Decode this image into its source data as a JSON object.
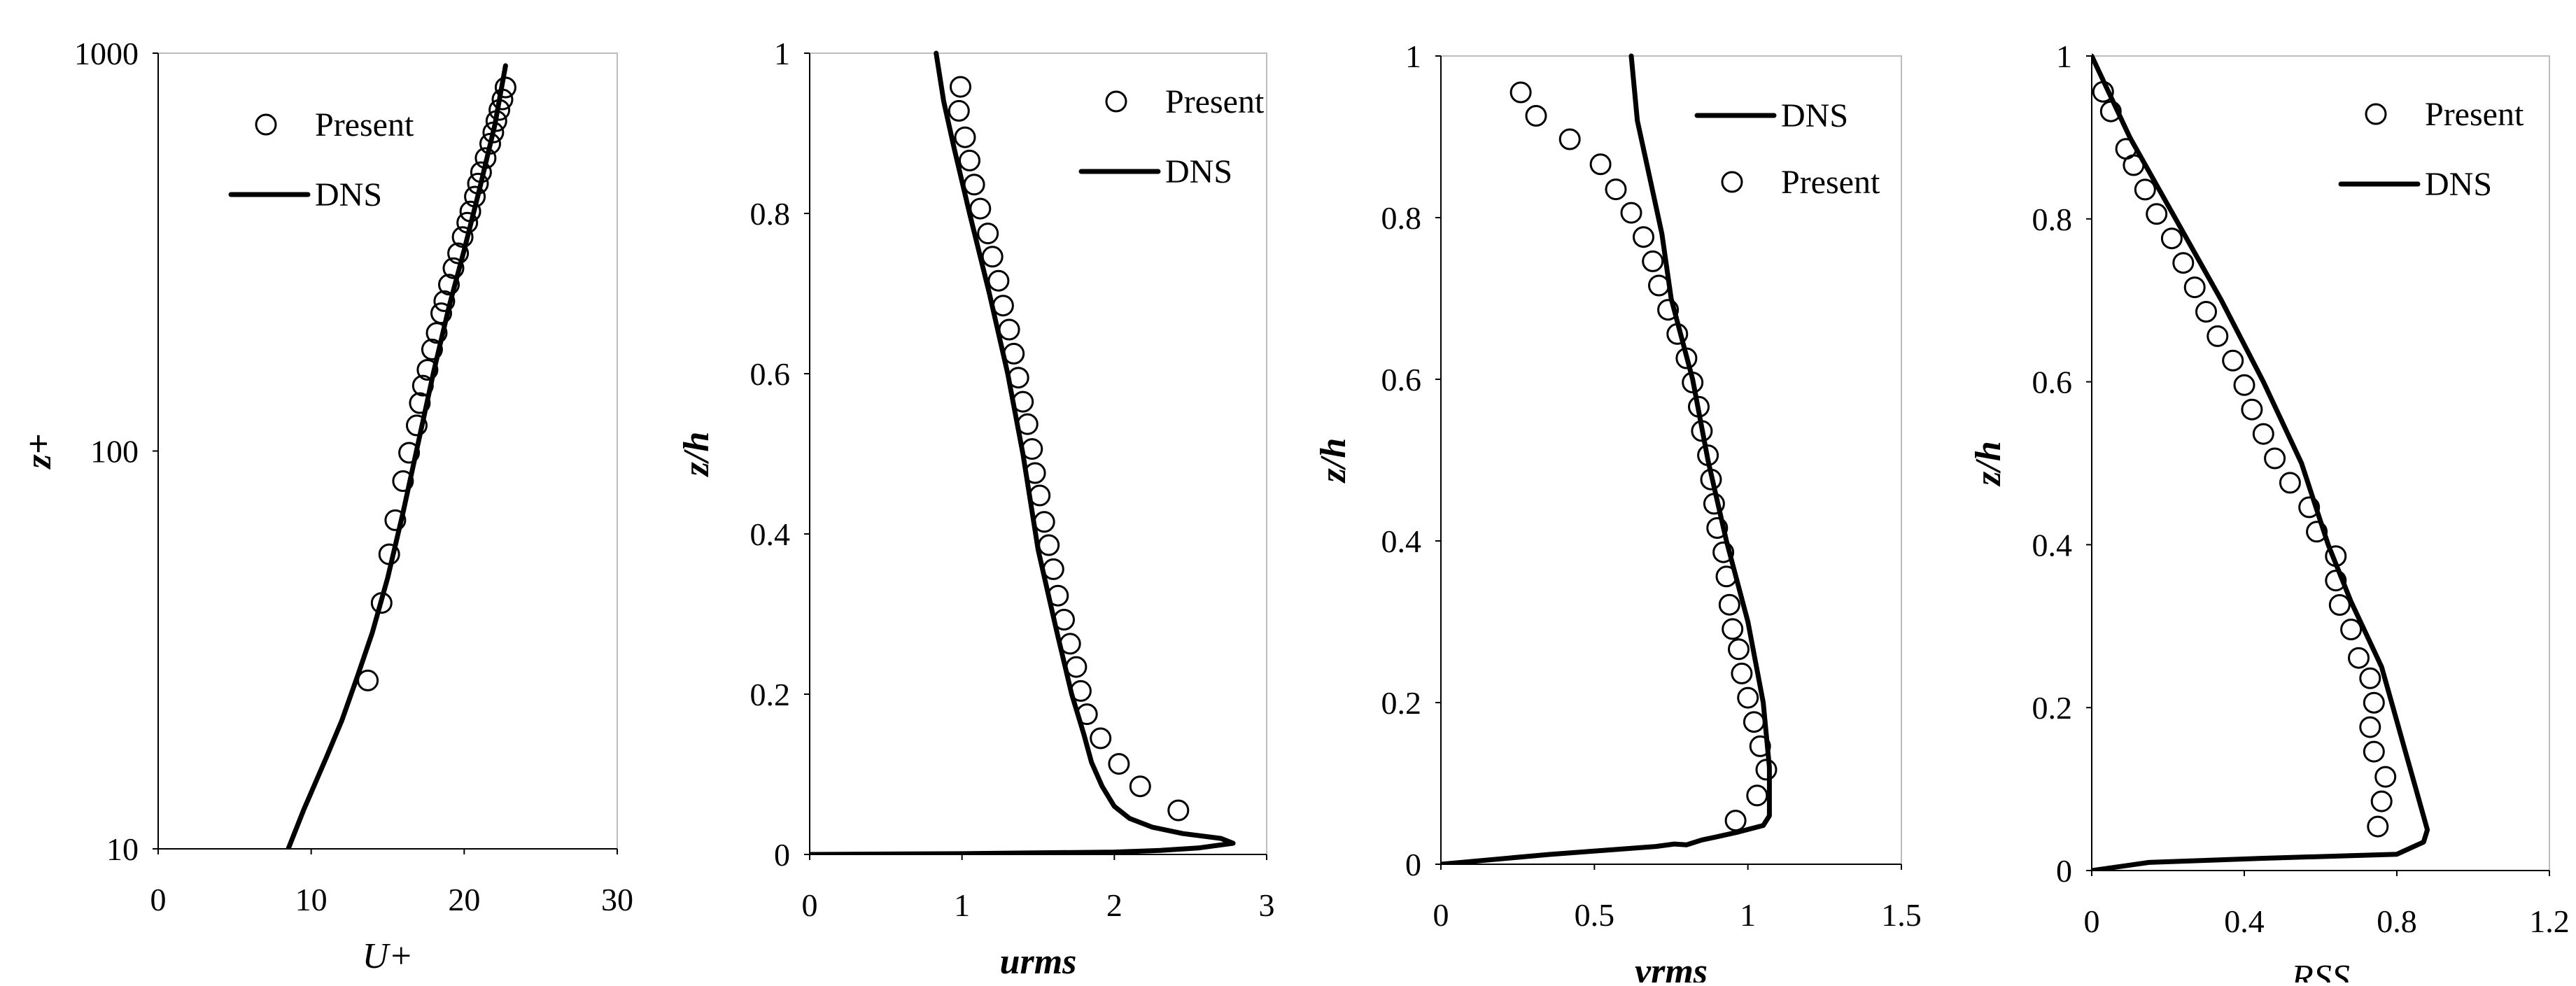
{
  "chart_data": [
    {
      "type": "scatter+line",
      "title": "",
      "xlabel": "U+",
      "ylabel": "z+",
      "xlim": [
        0,
        30
      ],
      "ylim": [
        10,
        1000
      ],
      "yscale": "log",
      "xticks": [
        "0",
        "10",
        "20",
        "30"
      ],
      "yticks": [
        "10",
        "100",
        "1000"
      ],
      "legend_position": "top-left",
      "legend": [
        {
          "label": "Present",
          "kind": "marker"
        },
        {
          "label": "DNS",
          "kind": "line"
        }
      ],
      "series": [
        {
          "name": "Present",
          "style": "marker",
          "points": [
            [
              13.7,
              26.5
            ],
            [
              14.6,
              41.5
            ],
            [
              15.1,
              55
            ],
            [
              15.5,
              67
            ],
            [
              16.0,
              84
            ],
            [
              16.4,
              99
            ],
            [
              16.9,
              116
            ],
            [
              17.1,
              132
            ],
            [
              17.3,
              146
            ],
            [
              17.6,
              160
            ],
            [
              17.9,
              180
            ],
            [
              18.2,
              198
            ],
            [
              18.5,
              222
            ],
            [
              18.7,
              238
            ],
            [
              19.0,
              262
            ],
            [
              19.3,
              288
            ],
            [
              19.6,
              314
            ],
            [
              19.9,
              345
            ],
            [
              20.2,
              375
            ],
            [
              20.4,
              400
            ],
            [
              20.7,
              436
            ],
            [
              20.9,
              470
            ],
            [
              21.1,
              502
            ],
            [
              21.4,
              545
            ],
            [
              21.7,
              592
            ],
            [
              21.9,
              632
            ],
            [
              22.1,
              675
            ],
            [
              22.3,
              720
            ],
            [
              22.5,
              765
            ],
            [
              22.7,
              820
            ]
          ]
        },
        {
          "name": "DNS",
          "style": "line",
          "points": [
            [
              8.5,
              10
            ],
            [
              9.5,
              12.5
            ],
            [
              11.0,
              17
            ],
            [
              12.0,
              21
            ],
            [
              13.0,
              27
            ],
            [
              14.0,
              35
            ],
            [
              15.0,
              48
            ],
            [
              16.0,
              70
            ],
            [
              17.0,
              105
            ],
            [
              18.0,
              158
            ],
            [
              19.0,
              230
            ],
            [
              20.0,
              320
            ],
            [
              21.0,
              455
            ],
            [
              22.0,
              660
            ],
            [
              22.7,
              930
            ]
          ]
        }
      ]
    },
    {
      "type": "scatter+line",
      "title": "",
      "xlabel": "urms",
      "ylabel": "z/h",
      "xlim": [
        0,
        3
      ],
      "ylim": [
        0,
        1
      ],
      "xticks": [
        "0",
        "1",
        "2",
        "3"
      ],
      "yticks": [
        "0",
        "0.2",
        "0.4",
        "0.6",
        "0.8",
        "1"
      ],
      "legend_position": "top-right",
      "legend": [
        {
          "label": "Present",
          "kind": "marker"
        },
        {
          "label": "DNS",
          "kind": "line"
        }
      ],
      "series": [
        {
          "name": "Present",
          "style": "marker",
          "points": [
            [
              2.42,
              0.055
            ],
            [
              2.17,
              0.085
            ],
            [
              2.03,
              0.113
            ],
            [
              1.91,
              0.145
            ],
            [
              1.82,
              0.175
            ],
            [
              1.78,
              0.204
            ],
            [
              1.75,
              0.234
            ],
            [
              1.71,
              0.263
            ],
            [
              1.67,
              0.293
            ],
            [
              1.63,
              0.323
            ],
            [
              1.6,
              0.356
            ],
            [
              1.57,
              0.386
            ],
            [
              1.54,
              0.415
            ],
            [
              1.51,
              0.448
            ],
            [
              1.48,
              0.476
            ],
            [
              1.46,
              0.506
            ],
            [
              1.43,
              0.537
            ],
            [
              1.4,
              0.565
            ],
            [
              1.37,
              0.595
            ],
            [
              1.34,
              0.625
            ],
            [
              1.31,
              0.655
            ],
            [
              1.27,
              0.685
            ],
            [
              1.24,
              0.716
            ],
            [
              1.2,
              0.746
            ],
            [
              1.17,
              0.775
            ],
            [
              1.12,
              0.806
            ],
            [
              1.08,
              0.836
            ],
            [
              1.05,
              0.866
            ],
            [
              1.02,
              0.895
            ],
            [
              0.98,
              0.928
            ],
            [
              0.99,
              0.958
            ]
          ]
        },
        {
          "name": "DNS",
          "style": "line",
          "points": [
            [
              0.0,
              0.0
            ],
            [
              1.0,
              0.001
            ],
            [
              2.0,
              0.003
            ],
            [
              2.3,
              0.005
            ],
            [
              2.55,
              0.008
            ],
            [
              2.78,
              0.014
            ],
            [
              2.7,
              0.02
            ],
            [
              2.45,
              0.026
            ],
            [
              2.25,
              0.034
            ],
            [
              2.1,
              0.045
            ],
            [
              2.0,
              0.06
            ],
            [
              1.92,
              0.085
            ],
            [
              1.85,
              0.115
            ],
            [
              1.8,
              0.15
            ],
            [
              1.72,
              0.2
            ],
            [
              1.62,
              0.28
            ],
            [
              1.5,
              0.38
            ],
            [
              1.4,
              0.5
            ],
            [
              1.3,
              0.6
            ],
            [
              1.18,
              0.7
            ],
            [
              1.05,
              0.8
            ],
            [
              0.95,
              0.88
            ],
            [
              0.88,
              0.94
            ],
            [
              0.83,
              1.0
            ]
          ]
        }
      ]
    },
    {
      "type": "scatter+line",
      "title": "",
      "xlabel": "vrms",
      "ylabel": "z/h",
      "xlim": [
        0,
        1.5
      ],
      "ylim": [
        0,
        1
      ],
      "xticks": [
        "0",
        "0.5",
        "1",
        "1.5"
      ],
      "yticks": [
        "0",
        "0.2",
        "0.4",
        "0.6",
        "0.8",
        "1"
      ],
      "legend_position": "top-right",
      "legend": [
        {
          "label": "DNS",
          "kind": "line"
        },
        {
          "label": "Present",
          "kind": "marker"
        }
      ],
      "series": [
        {
          "name": "Present",
          "style": "marker",
          "points": [
            [
              0.26,
              0.955
            ],
            [
              0.31,
              0.926
            ],
            [
              0.42,
              0.897
            ],
            [
              0.52,
              0.866
            ],
            [
              0.57,
              0.835
            ],
            [
              0.62,
              0.806
            ],
            [
              0.66,
              0.776
            ],
            [
              0.69,
              0.746
            ],
            [
              0.71,
              0.716
            ],
            [
              0.74,
              0.686
            ],
            [
              0.77,
              0.656
            ],
            [
              0.8,
              0.626
            ],
            [
              0.82,
              0.596
            ],
            [
              0.84,
              0.566
            ],
            [
              0.85,
              0.536
            ],
            [
              0.87,
              0.506
            ],
            [
              0.88,
              0.476
            ],
            [
              0.89,
              0.446
            ],
            [
              0.9,
              0.416
            ],
            [
              0.92,
              0.386
            ],
            [
              0.93,
              0.356
            ],
            [
              0.94,
              0.321
            ],
            [
              0.95,
              0.291
            ],
            [
              0.97,
              0.266
            ],
            [
              0.98,
              0.236
            ],
            [
              1.0,
              0.206
            ],
            [
              1.02,
              0.176
            ],
            [
              1.04,
              0.146
            ],
            [
              1.06,
              0.117
            ],
            [
              1.03,
              0.085
            ],
            [
              0.96,
              0.054
            ]
          ]
        },
        {
          "name": "DNS",
          "style": "line",
          "points": [
            [
              0.0,
              0.0
            ],
            [
              0.35,
              0.012
            ],
            [
              0.7,
              0.022
            ],
            [
              0.76,
              0.025
            ],
            [
              0.8,
              0.024
            ],
            [
              0.85,
              0.03
            ],
            [
              0.9,
              0.034
            ],
            [
              0.97,
              0.04
            ],
            [
              1.05,
              0.048
            ],
            [
              1.07,
              0.06
            ],
            [
              1.07,
              0.12
            ],
            [
              1.05,
              0.2
            ],
            [
              1.0,
              0.3
            ],
            [
              0.93,
              0.4
            ],
            [
              0.87,
              0.5
            ],
            [
              0.82,
              0.6
            ],
            [
              0.75,
              0.7
            ],
            [
              0.72,
              0.78
            ],
            [
              0.68,
              0.85
            ],
            [
              0.64,
              0.92
            ],
            [
              0.62,
              1.0
            ]
          ]
        }
      ]
    },
    {
      "type": "scatter+line",
      "title": "",
      "xlabel": "RSS",
      "ylabel": "z/h",
      "xlim": [
        0,
        1.2
      ],
      "ylim": [
        0,
        1
      ],
      "xticks": [
        "0",
        "0.4",
        "0.8",
        "1.2"
      ],
      "yticks": [
        "0",
        "0.2",
        "0.4",
        "0.6",
        "0.8",
        "1"
      ],
      "legend_position": "top-right",
      "legend": [
        {
          "label": "Present",
          "kind": "marker"
        },
        {
          "label": "DNS",
          "kind": "line"
        }
      ],
      "series": [
        {
          "name": "Present",
          "style": "marker",
          "points": [
            [
              0.75,
              0.054
            ],
            [
              0.76,
              0.085
            ],
            [
              0.77,
              0.115
            ],
            [
              0.74,
              0.146
            ],
            [
              0.73,
              0.176
            ],
            [
              0.74,
              0.206
            ],
            [
              0.73,
              0.236
            ],
            [
              0.7,
              0.261
            ],
            [
              0.68,
              0.296
            ],
            [
              0.65,
              0.326
            ],
            [
              0.64,
              0.356
            ],
            [
              0.64,
              0.386
            ],
            [
              0.59,
              0.416
            ],
            [
              0.57,
              0.446
            ],
            [
              0.52,
              0.476
            ],
            [
              0.48,
              0.506
            ],
            [
              0.45,
              0.536
            ],
            [
              0.42,
              0.566
            ],
            [
              0.4,
              0.596
            ],
            [
              0.37,
              0.626
            ],
            [
              0.33,
              0.656
            ],
            [
              0.3,
              0.686
            ],
            [
              0.27,
              0.716
            ],
            [
              0.24,
              0.746
            ],
            [
              0.21,
              0.776
            ],
            [
              0.17,
              0.806
            ],
            [
              0.14,
              0.836
            ],
            [
              0.11,
              0.866
            ],
            [
              0.09,
              0.886
            ],
            [
              0.05,
              0.932
            ],
            [
              0.03,
              0.956
            ]
          ]
        },
        {
          "name": "DNS",
          "style": "line",
          "points": [
            [
              0.0,
              0.0
            ],
            [
              0.15,
              0.01
            ],
            [
              0.45,
              0.015
            ],
            [
              0.8,
              0.02
            ],
            [
              0.87,
              0.035
            ],
            [
              0.88,
              0.05
            ],
            [
              0.85,
              0.1
            ],
            [
              0.82,
              0.15
            ],
            [
              0.79,
              0.2
            ],
            [
              0.76,
              0.25
            ],
            [
              0.72,
              0.29
            ],
            [
              0.68,
              0.33
            ],
            [
              0.62,
              0.4
            ],
            [
              0.55,
              0.5
            ],
            [
              0.45,
              0.6
            ],
            [
              0.34,
              0.7
            ],
            [
              0.22,
              0.8
            ],
            [
              0.1,
              0.9
            ],
            [
              0.0,
              1.0
            ]
          ]
        }
      ]
    }
  ]
}
